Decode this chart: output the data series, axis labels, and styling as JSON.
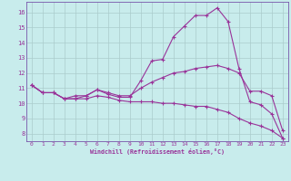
{
  "xlabel": "Windchill (Refroidissement éolien,°C)",
  "bg_color": "#c8ecec",
  "grid_color": "#aacccc",
  "line_color": "#993399",
  "spine_color": "#7755aa",
  "xlim": [
    -0.5,
    23.5
  ],
  "ylim": [
    7.5,
    16.7
  ],
  "xticks": [
    0,
    1,
    2,
    3,
    4,
    5,
    6,
    7,
    8,
    9,
    10,
    11,
    12,
    13,
    14,
    15,
    16,
    17,
    18,
    19,
    20,
    21,
    22,
    23
  ],
  "yticks": [
    8,
    9,
    10,
    11,
    12,
    13,
    14,
    15,
    16
  ],
  "line1_x": [
    0,
    1,
    2,
    3,
    4,
    5,
    6,
    7,
    8,
    9,
    10,
    11,
    12,
    13,
    14,
    15,
    16,
    17,
    18,
    19,
    20,
    21,
    22,
    23
  ],
  "line1_y": [
    11.2,
    10.7,
    10.7,
    10.3,
    10.3,
    10.5,
    10.9,
    10.6,
    10.4,
    10.4,
    11.5,
    12.8,
    12.9,
    14.4,
    15.1,
    15.8,
    15.8,
    16.3,
    15.4,
    12.3,
    10.1,
    9.9,
    9.3,
    7.7
  ],
  "line2_x": [
    0,
    1,
    2,
    3,
    4,
    5,
    6,
    7,
    8,
    9,
    10,
    11,
    12,
    13,
    14,
    15,
    16,
    17,
    18,
    19,
    20,
    21,
    22,
    23
  ],
  "line2_y": [
    11.2,
    10.7,
    10.7,
    10.3,
    10.5,
    10.5,
    10.9,
    10.7,
    10.5,
    10.5,
    11.0,
    11.4,
    11.7,
    12.0,
    12.1,
    12.3,
    12.4,
    12.5,
    12.3,
    12.0,
    10.8,
    10.8,
    10.5,
    8.2
  ],
  "line3_x": [
    0,
    1,
    2,
    3,
    4,
    5,
    6,
    7,
    8,
    9,
    10,
    11,
    12,
    13,
    14,
    15,
    16,
    17,
    18,
    19,
    20,
    21,
    22,
    23
  ],
  "line3_y": [
    11.2,
    10.7,
    10.7,
    10.3,
    10.3,
    10.3,
    10.5,
    10.4,
    10.2,
    10.1,
    10.1,
    10.1,
    10.0,
    10.0,
    9.9,
    9.8,
    9.8,
    9.6,
    9.4,
    9.0,
    8.7,
    8.5,
    8.2,
    7.7
  ]
}
